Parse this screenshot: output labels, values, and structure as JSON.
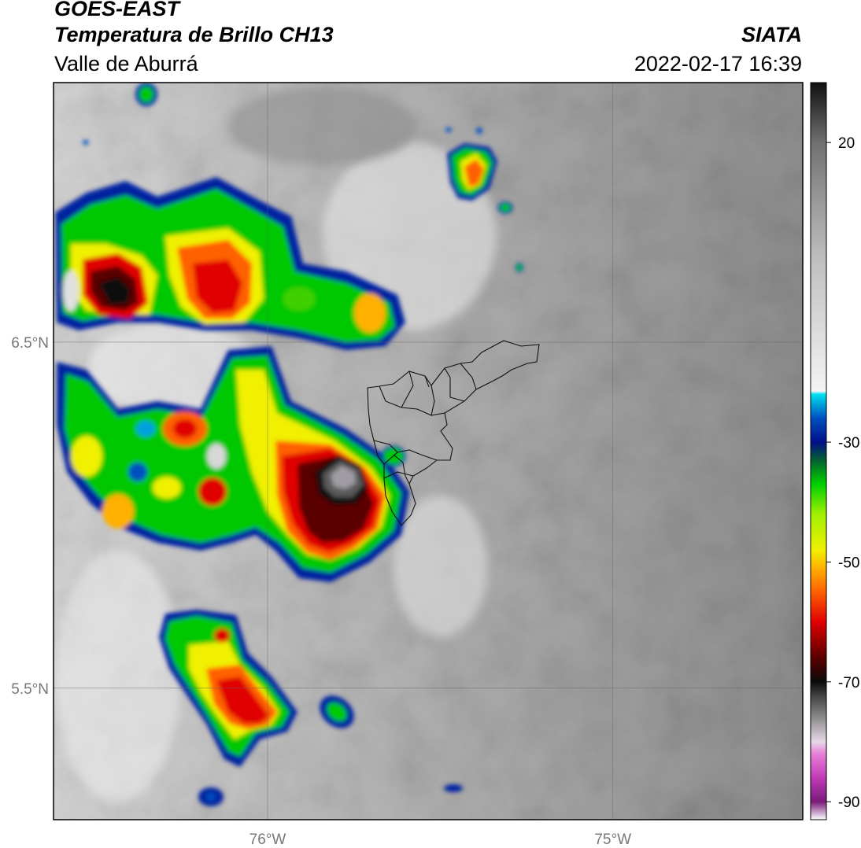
{
  "header": {
    "satellite": "GOES-EAST",
    "product": "Temperatura de Brillo CH13",
    "region": "Valle de Aburrá",
    "organization": "SIATA",
    "timestamp": "2022-02-17 16:39"
  },
  "map": {
    "lat_labels": [
      "6.5°N",
      "5.5°N"
    ],
    "lon_labels": [
      "76°W",
      "75°W"
    ],
    "lat_values": [
      6.5,
      5.5
    ],
    "lon_values": [
      -76.0,
      -75.0
    ],
    "extent": {
      "lon_min": -76.62,
      "lon_max": -74.45,
      "lat_min": 5.12,
      "lat_max": 7.25
    },
    "grid": true
  },
  "colorbar": {
    "tick_labels": [
      "20",
      "-30",
      "-50",
      "-70",
      "-90"
    ],
    "tick_values": [
      20,
      -30,
      -50,
      -70,
      -90
    ],
    "range": [
      -93,
      30
    ],
    "units": "",
    "stops": [
      {
        "v": -93,
        "c": "#ffffff"
      },
      {
        "v": -90,
        "c": "#7a1a7a"
      },
      {
        "v": -86,
        "c": "#c03bb8"
      },
      {
        "v": -82,
        "c": "#e880d8"
      },
      {
        "v": -80,
        "c": "#e8d8e8"
      },
      {
        "v": -76,
        "c": "#8c8c8c"
      },
      {
        "v": -72,
        "c": "#3c3c3c"
      },
      {
        "v": -70,
        "c": "#0a0a0a"
      },
      {
        "v": -66,
        "c": "#5a0000"
      },
      {
        "v": -60,
        "c": "#e00000"
      },
      {
        "v": -55,
        "c": "#ff6000"
      },
      {
        "v": -51,
        "c": "#ffb000"
      },
      {
        "v": -48,
        "c": "#f0f000"
      },
      {
        "v": -42,
        "c": "#a0f000"
      },
      {
        "v": -37,
        "c": "#00d000"
      },
      {
        "v": -33,
        "c": "#006030"
      },
      {
        "v": -30,
        "c": "#00108a"
      },
      {
        "v": -26,
        "c": "#0050c0"
      },
      {
        "v": -22,
        "c": "#00e0f0"
      },
      {
        "v": -21.5,
        "c": "#f4f4f4"
      },
      {
        "v": -10,
        "c": "#d8d8d8"
      },
      {
        "v": 0,
        "c": "#c0c0c0"
      },
      {
        "v": 10,
        "c": "#9a9a9a"
      },
      {
        "v": 20,
        "c": "#707070"
      },
      {
        "v": 25,
        "c": "#404040"
      },
      {
        "v": 30,
        "c": "#101010"
      }
    ]
  },
  "features": {
    "background": "grayscale cloud texture",
    "cells": [
      {
        "kind": "large convective cell",
        "lon": -75.67,
        "lat": 5.95,
        "min_temp": -82
      },
      {
        "kind": "convective cell",
        "lon": -76.3,
        "lat": 6.7,
        "min_temp": -68
      },
      {
        "kind": "convective cell",
        "lon": -76.17,
        "lat": 6.67,
        "min_temp": -60
      },
      {
        "kind": "convective cell",
        "lon": -75.83,
        "lat": 5.5,
        "min_temp": -60
      },
      {
        "kind": "convective cell",
        "lon": -75.2,
        "lat": 7.0,
        "min_temp": -55
      }
    ]
  }
}
